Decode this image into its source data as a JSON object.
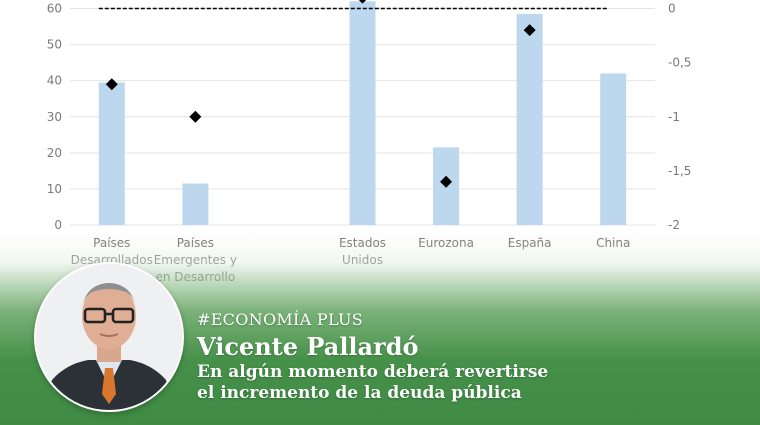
{
  "chart_data": {
    "type": "bar",
    "categories": [
      [
        "Países",
        "Desarrollados"
      ],
      [
        "Países",
        "Emergentes y",
        "en Desarrollo"
      ],
      [],
      [
        "Estados",
        "Unidos"
      ],
      [
        "Eurozona"
      ],
      [
        "España"
      ],
      [
        "China"
      ]
    ],
    "series": [
      {
        "type": "bar",
        "axis": "left",
        "color": "#bdd7ee",
        "values": [
          39.5,
          11.5,
          null,
          62,
          21.5,
          58.5,
          42
        ]
      },
      {
        "type": "scatter",
        "marker": "diamond",
        "axis": "right",
        "color": "#000000",
        "values": [
          -0.7,
          -1.0,
          null,
          0.1,
          -1.6,
          -0.2,
          null
        ]
      }
    ],
    "reference_line": {
      "axis": "right",
      "value": 0,
      "style": "dashed"
    },
    "y_left": {
      "ylim": [
        0,
        60
      ],
      "ticks": [
        "0",
        "10",
        "20",
        "30",
        "40",
        "50",
        "60"
      ]
    },
    "y_right": {
      "ylim": [
        -2,
        0
      ],
      "ticks": [
        "-2",
        "-1,5",
        "-1",
        "-0,5",
        "0"
      ]
    },
    "grid": true
  },
  "badge": {
    "kicker": "#ECONOMÍA PLUS",
    "author": "Vicente Pallardó",
    "headline_line1": "En algún momento deberá revertirse",
    "headline_line2": "el incremento de la deuda pública"
  },
  "colors": {
    "banner_green": "#46914a",
    "bar": "#bdd7ee"
  },
  "icons": {
    "portrait": "author-portrait"
  }
}
